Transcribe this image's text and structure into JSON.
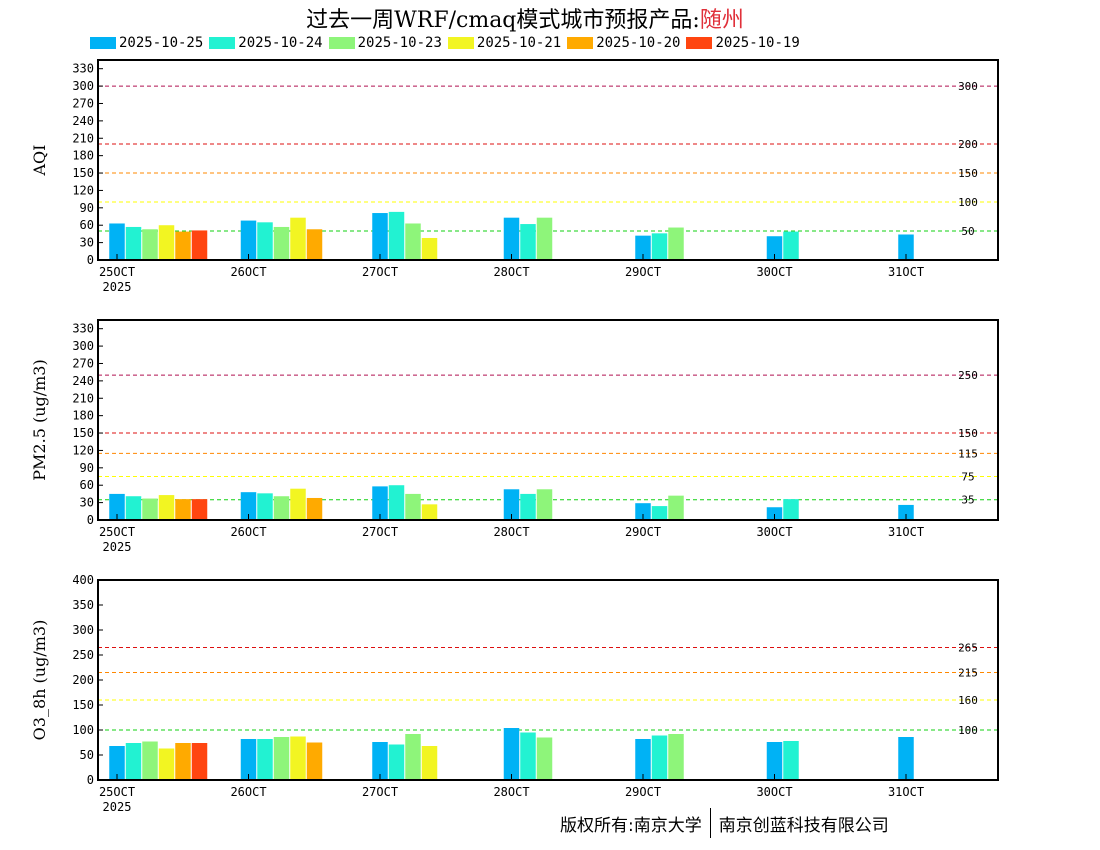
{
  "title": {
    "prefix": "过去一周WRF/cmaq模式城市预报产品:",
    "city": "随州"
  },
  "footer": {
    "left": "版权所有:南京大学",
    "right": "南京创蓝科技有限公司"
  },
  "colors": {
    "2025-10-25": "#00b2f5",
    "2025-10-24": "#22f2d2",
    "2025-10-23": "#8ef57a",
    "2025-10-21": "#f2f522",
    "2025-10-20": "#ffaa00",
    "2025-10-19": "#ff4510"
  },
  "chart_data": [
    {
      "type": "bar",
      "ylabel": "AQI",
      "ylim": [
        0,
        345
      ],
      "yticks": [
        0,
        30,
        60,
        90,
        120,
        150,
        180,
        210,
        240,
        270,
        300,
        330
      ],
      "xticks": [
        "25OCT",
        "26OCT",
        "27OCT",
        "28OCT",
        "29OCT",
        "30OCT",
        "31OCT"
      ],
      "xtick_sub": "2025",
      "reference_lines": [
        {
          "value": 300,
          "label": "300",
          "color": "#b01050"
        },
        {
          "value": 200,
          "label": "200",
          "color": "#dd1010"
        },
        {
          "value": 150,
          "label": "150",
          "color": "#ff8800"
        },
        {
          "value": 100,
          "label": "100",
          "color": "#ffff00"
        },
        {
          "value": 50,
          "label": "50",
          "color": "#10d010"
        }
      ],
      "series": [
        {
          "name": "2025-10-25",
          "values": [
            {
              "x": 0,
              "y": 63
            },
            {
              "x": 1,
              "y": 68
            },
            {
              "x": 2,
              "y": 81
            },
            {
              "x": 3,
              "y": 73
            },
            {
              "x": 4,
              "y": 42
            },
            {
              "x": 5,
              "y": 41
            },
            {
              "x": 6,
              "y": 44
            }
          ]
        },
        {
          "name": "2025-10-24",
          "values": [
            {
              "x": 0,
              "y": 57
            },
            {
              "x": 1,
              "y": 65
            },
            {
              "x": 2,
              "y": 83
            },
            {
              "x": 3,
              "y": 62
            },
            {
              "x": 4,
              "y": 46
            },
            {
              "x": 5,
              "y": 49
            }
          ]
        },
        {
          "name": "2025-10-23",
          "values": [
            {
              "x": 0,
              "y": 53
            },
            {
              "x": 1,
              "y": 57
            },
            {
              "x": 2,
              "y": 63
            },
            {
              "x": 3,
              "y": 73
            },
            {
              "x": 4,
              "y": 56
            }
          ]
        },
        {
          "name": "2025-10-21",
          "values": [
            {
              "x": 0,
              "y": 60
            },
            {
              "x": 1,
              "y": 73
            },
            {
              "x": 2,
              "y": 38
            }
          ]
        },
        {
          "name": "2025-10-20",
          "values": [
            {
              "x": 0,
              "y": 49
            },
            {
              "x": 1,
              "y": 53
            }
          ]
        },
        {
          "name": "2025-10-19",
          "values": [
            {
              "x": 0,
              "y": 51
            }
          ]
        }
      ]
    },
    {
      "type": "bar",
      "ylabel": "PM2.5 (ug/m3)",
      "ylim": [
        0,
        345
      ],
      "yticks": [
        0,
        30,
        60,
        90,
        120,
        150,
        180,
        210,
        240,
        270,
        300,
        330
      ],
      "xticks": [
        "25OCT",
        "26OCT",
        "27OCT",
        "28OCT",
        "29OCT",
        "30OCT",
        "31OCT"
      ],
      "xtick_sub": "2025",
      "reference_lines": [
        {
          "value": 250,
          "label": "250",
          "color": "#b01050"
        },
        {
          "value": 150,
          "label": "150",
          "color": "#dd1010"
        },
        {
          "value": 115,
          "label": "115",
          "color": "#ff8800"
        },
        {
          "value": 75,
          "label": "75",
          "color": "#ffff00"
        },
        {
          "value": 35,
          "label": "35",
          "color": "#10d010"
        }
      ],
      "series": [
        {
          "name": "2025-10-25",
          "values": [
            {
              "x": 0,
              "y": 45
            },
            {
              "x": 1,
              "y": 48
            },
            {
              "x": 2,
              "y": 58
            },
            {
              "x": 3,
              "y": 53
            },
            {
              "x": 4,
              "y": 29
            },
            {
              "x": 5,
              "y": 22
            },
            {
              "x": 6,
              "y": 26
            }
          ]
        },
        {
          "name": "2025-10-24",
          "values": [
            {
              "x": 0,
              "y": 41
            },
            {
              "x": 1,
              "y": 46
            },
            {
              "x": 2,
              "y": 60
            },
            {
              "x": 3,
              "y": 45
            },
            {
              "x": 4,
              "y": 24
            },
            {
              "x": 5,
              "y": 36
            }
          ]
        },
        {
          "name": "2025-10-23",
          "values": [
            {
              "x": 0,
              "y": 37
            },
            {
              "x": 1,
              "y": 41
            },
            {
              "x": 2,
              "y": 45
            },
            {
              "x": 3,
              "y": 53
            },
            {
              "x": 4,
              "y": 42
            }
          ]
        },
        {
          "name": "2025-10-21",
          "values": [
            {
              "x": 0,
              "y": 43
            },
            {
              "x": 1,
              "y": 54
            },
            {
              "x": 2,
              "y": 27
            }
          ]
        },
        {
          "name": "2025-10-20",
          "values": [
            {
              "x": 0,
              "y": 36
            },
            {
              "x": 1,
              "y": 38
            }
          ]
        },
        {
          "name": "2025-10-19",
          "values": [
            {
              "x": 0,
              "y": 36
            }
          ]
        }
      ]
    },
    {
      "type": "bar",
      "ylabel": "O3_8h (ug/m3)",
      "ylim": [
        0,
        400
      ],
      "yticks": [
        0,
        50,
        100,
        150,
        200,
        250,
        300,
        350,
        400
      ],
      "xticks": [
        "25OCT",
        "26OCT",
        "27OCT",
        "28OCT",
        "29OCT",
        "30OCT",
        "31OCT"
      ],
      "xtick_sub": "2025",
      "reference_lines": [
        {
          "value": 265,
          "label": "265",
          "color": "#dd1010"
        },
        {
          "value": 215,
          "label": "215",
          "color": "#ff8800"
        },
        {
          "value": 160,
          "label": "160",
          "color": "#ffff00"
        },
        {
          "value": 100,
          "label": "100",
          "color": "#10d010"
        }
      ],
      "series": [
        {
          "name": "2025-10-25",
          "values": [
            {
              "x": 0,
              "y": 68
            },
            {
              "x": 1,
              "y": 82
            },
            {
              "x": 2,
              "y": 76
            },
            {
              "x": 3,
              "y": 104
            },
            {
              "x": 4,
              "y": 82
            },
            {
              "x": 5,
              "y": 76
            },
            {
              "x": 6,
              "y": 86
            }
          ]
        },
        {
          "name": "2025-10-24",
          "values": [
            {
              "x": 0,
              "y": 74
            },
            {
              "x": 1,
              "y": 82
            },
            {
              "x": 2,
              "y": 71
            },
            {
              "x": 3,
              "y": 95
            },
            {
              "x": 4,
              "y": 89
            },
            {
              "x": 5,
              "y": 78
            }
          ]
        },
        {
          "name": "2025-10-23",
          "values": [
            {
              "x": 0,
              "y": 77
            },
            {
              "x": 1,
              "y": 86
            },
            {
              "x": 2,
              "y": 92
            },
            {
              "x": 3,
              "y": 85
            },
            {
              "x": 4,
              "y": 92
            }
          ]
        },
        {
          "name": "2025-10-21",
          "values": [
            {
              "x": 0,
              "y": 63
            },
            {
              "x": 1,
              "y": 87
            },
            {
              "x": 2,
              "y": 68
            }
          ]
        },
        {
          "name": "2025-10-20",
          "values": [
            {
              "x": 0,
              "y": 74
            },
            {
              "x": 1,
              "y": 75
            }
          ]
        },
        {
          "name": "2025-10-19",
          "values": [
            {
              "x": 0,
              "y": 74
            }
          ]
        }
      ]
    }
  ]
}
